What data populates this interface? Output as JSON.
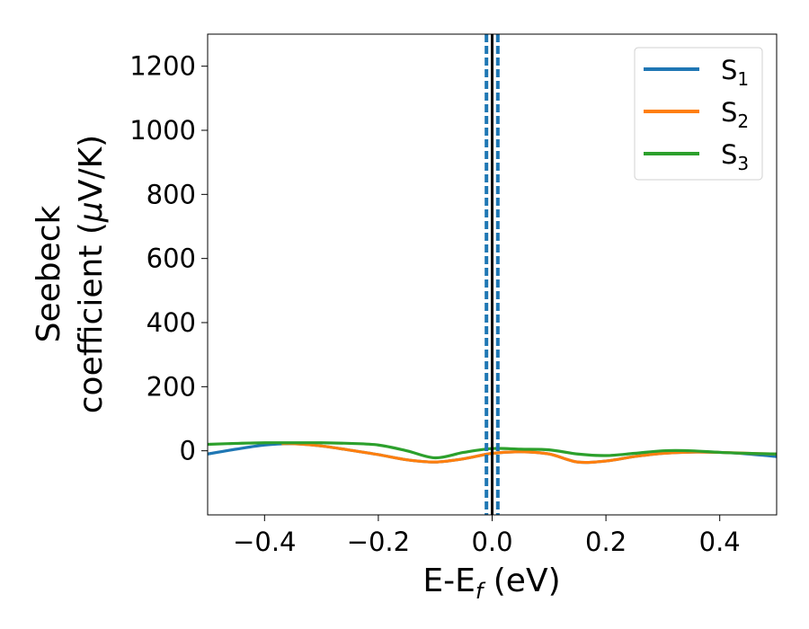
{
  "chart_data": {
    "type": "line",
    "xlabel": "E-E",
    "xlabel_sub": "f",
    "xlabel_suffix": " (eV)",
    "ylabel_line1": "Seebeck",
    "ylabel_line2": "coefficient  (",
    "ylabel_mu": "μ",
    "ylabel_line2_end": "V/K)",
    "xlim": [
      -0.5,
      0.5
    ],
    "ylim": [
      -200,
      1300
    ],
    "xticks": [
      -0.4,
      -0.2,
      0.0,
      0.2,
      0.4
    ],
    "xtick_labels": [
      "−0.4",
      "−0.2",
      "0.0",
      "0.2",
      "0.4"
    ],
    "yticks": [
      0,
      200,
      400,
      600,
      800,
      1000,
      1200
    ],
    "ytick_labels": [
      "0",
      "200",
      "400",
      "600",
      "800",
      "1000",
      "1200"
    ],
    "grid": false,
    "legend_position": "top-right",
    "vertical_lines": [
      {
        "x": -0.01,
        "style": "dashed",
        "color": "#1f77b4"
      },
      {
        "x": 0.01,
        "style": "dashed",
        "color": "#1f77b4"
      },
      {
        "x": 0.0,
        "style": "solid",
        "color": "#000000"
      }
    ],
    "series": [
      {
        "name": "S",
        "sub": "1",
        "color": "#1f77b4",
        "x": [
          -0.5,
          -0.45,
          -0.4,
          -0.35,
          -0.3,
          -0.25,
          -0.2,
          -0.15,
          -0.1,
          -0.05,
          0.0,
          0.05,
          0.1,
          0.15,
          0.2,
          0.25,
          0.3,
          0.35,
          0.4,
          0.45,
          0.5
        ],
        "y": [
          -10,
          5,
          18,
          22,
          15,
          2,
          -12,
          -28,
          -35,
          -25,
          -8,
          -3,
          -10,
          -35,
          -32,
          -18,
          -8,
          -4,
          -5,
          -10,
          -18
        ]
      },
      {
        "name": "S",
        "sub": "2",
        "color": "#ff7f0e",
        "x": [
          -0.37,
          -0.35,
          -0.3,
          -0.25,
          -0.2,
          -0.15,
          -0.1,
          -0.05,
          0.0,
          0.05,
          0.1,
          0.15,
          0.2,
          0.25,
          0.3,
          0.35,
          0.4,
          0.45,
          0.5
        ],
        "y": [
          22,
          22,
          15,
          2,
          -12,
          -28,
          -35,
          -25,
          -8,
          -3,
          -10,
          -35,
          -32,
          -18,
          -8,
          -4,
          -5,
          -8,
          -10
        ]
      },
      {
        "name": "S",
        "sub": "3",
        "color": "#2ca02c",
        "x": [
          -0.5,
          -0.45,
          -0.4,
          -0.35,
          -0.3,
          -0.25,
          -0.2,
          -0.15,
          -0.1,
          -0.05,
          0.0,
          0.05,
          0.1,
          0.15,
          0.2,
          0.25,
          0.3,
          0.35,
          0.4,
          0.45,
          0.5
        ],
        "y": [
          20,
          23,
          25,
          25,
          25,
          23,
          18,
          0,
          -22,
          -5,
          7,
          5,
          3,
          -10,
          -15,
          -8,
          0,
          0,
          -5,
          -8,
          -10
        ]
      }
    ]
  }
}
